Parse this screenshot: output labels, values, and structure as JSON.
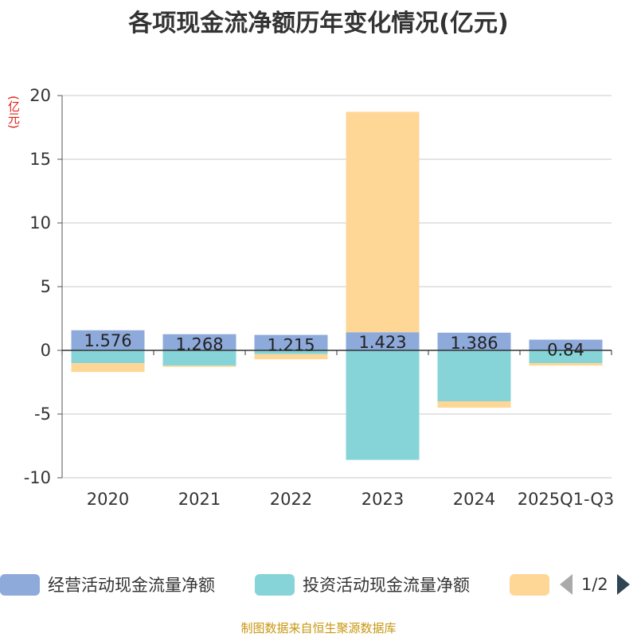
{
  "chart_data": {
    "type": "bar",
    "stacked": true,
    "title": "各项现金流净额历年变化情况(亿元)",
    "ylabel": "(亿元)",
    "ylim": [
      -10,
      20
    ],
    "yticks": [
      -10,
      -5,
      0,
      5,
      10,
      15,
      20
    ],
    "categories": [
      "2020",
      "2021",
      "2022",
      "2023",
      "2024",
      "2025Q1-Q3"
    ],
    "series": [
      {
        "name": "经营活动现金流量净额",
        "color": "#8eaadb",
        "values": [
          1.576,
          1.268,
          1.215,
          1.423,
          1.386,
          0.84
        ],
        "labels": [
          "1.576",
          "1.268",
          "1.215",
          "1.423",
          "1.386",
          "0.84"
        ]
      },
      {
        "name": "投资活动现金流量净额",
        "color": "#86d4d8",
        "values": [
          -1.0,
          -1.2,
          -0.3,
          -8.6,
          -4.0,
          -1.0
        ]
      },
      {
        "name": "",
        "color": "#fed797",
        "values": [
          -0.7,
          -0.1,
          -0.4,
          17.3,
          -0.5,
          -0.2
        ]
      }
    ],
    "grid": true
  },
  "legend": {
    "items": [
      {
        "label": "经营活动现金流量净额",
        "color": "#8eaadb"
      },
      {
        "label": "投资活动现金流量净额",
        "color": "#86d4d8"
      },
      {
        "label": "",
        "color": "#fed797"
      }
    ],
    "page": "1/2"
  },
  "source": "制图数据来自恒生聚源数据库"
}
